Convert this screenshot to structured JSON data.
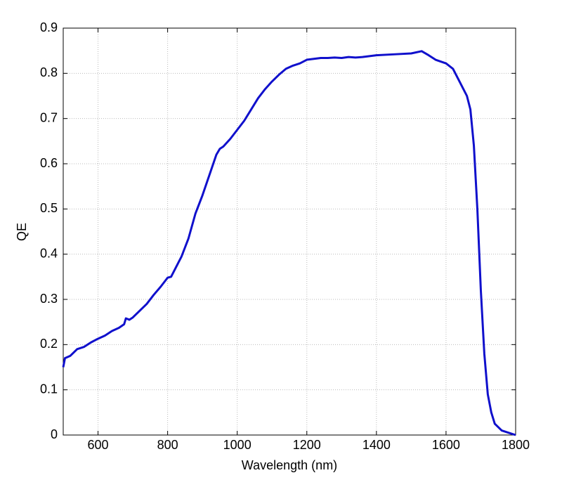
{
  "chart_data": {
    "type": "line",
    "xlabel": "Wavelength (nm)",
    "ylabel": "QE",
    "x": [
      500,
      505,
      520,
      540,
      560,
      580,
      600,
      620,
      640,
      660,
      675,
      680,
      690,
      700,
      720,
      740,
      760,
      780,
      800,
      810,
      820,
      840,
      860,
      880,
      890,
      900,
      920,
      940,
      950,
      960,
      980,
      1000,
      1020,
      1040,
      1060,
      1080,
      1100,
      1120,
      1140,
      1160,
      1180,
      1200,
      1220,
      1240,
      1260,
      1280,
      1300,
      1320,
      1340,
      1360,
      1380,
      1400,
      1450,
      1500,
      1530,
      1550,
      1570,
      1600,
      1620,
      1640,
      1660,
      1670,
      1680,
      1690,
      1700,
      1710,
      1720,
      1730,
      1740,
      1760,
      1780,
      1800
    ],
    "series": [
      {
        "name": "QE",
        "color": "#1010cc",
        "values": [
          0.15,
          0.17,
          0.175,
          0.19,
          0.195,
          0.205,
          0.213,
          0.22,
          0.23,
          0.237,
          0.245,
          0.258,
          0.255,
          0.26,
          0.275,
          0.29,
          0.31,
          0.328,
          0.348,
          0.35,
          0.365,
          0.395,
          0.435,
          0.49,
          0.51,
          0.53,
          0.575,
          0.62,
          0.633,
          0.638,
          0.655,
          0.675,
          0.695,
          0.72,
          0.745,
          0.765,
          0.782,
          0.797,
          0.81,
          0.817,
          0.822,
          0.83,
          0.832,
          0.834,
          0.834,
          0.835,
          0.834,
          0.836,
          0.835,
          0.836,
          0.838,
          0.84,
          0.842,
          0.844,
          0.849,
          0.84,
          0.83,
          0.822,
          0.81,
          0.78,
          0.75,
          0.72,
          0.64,
          0.5,
          0.32,
          0.18,
          0.09,
          0.05,
          0.025,
          0.01,
          0.005,
          0
        ]
      }
    ],
    "xlim": [
      500,
      1800
    ],
    "xticks": [
      600,
      800,
      1000,
      1200,
      1400,
      1600,
      1800
    ],
    "ylim": [
      0,
      0.9
    ],
    "yticks": [
      0,
      0.1,
      0.2,
      0.3,
      0.4,
      0.5,
      0.6,
      0.7,
      0.8,
      0.9
    ],
    "grid": true
  }
}
